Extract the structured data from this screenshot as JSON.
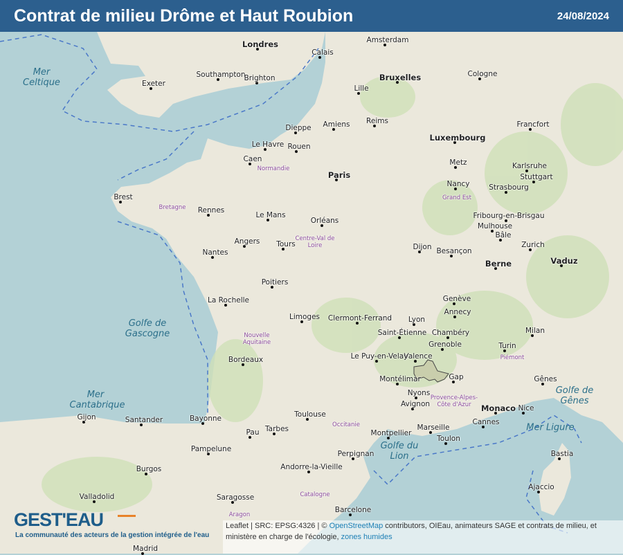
{
  "header": {
    "title": "Contrat de milieu Drôme et Haut Roubion",
    "date": "24/08/2024"
  },
  "map": {
    "highlight_area": "Drôme et Haut Roubion",
    "colors": {
      "sea": "#b3d1d6",
      "land": "#ebe8dc",
      "forest": "#cfe0b8",
      "highlight": "#c9ceac",
      "header": "#2c5f8e",
      "boundary": "#4a78c8"
    },
    "cities": [
      "Londres",
      "Paris",
      "Bruxelles",
      "Luxembourg",
      "Berne",
      "Monaco",
      "Vaduz",
      "Amsterdam",
      "Lille",
      "Rouen",
      "Le Havre",
      "Caen",
      "Rennes",
      "Brest",
      "Nantes",
      "Angers",
      "Le Mans",
      "Tours",
      "Orléans",
      "Poitiers",
      "La Rochelle",
      "Limoges",
      "Bordeaux",
      "Toulouse",
      "Montpellier",
      "Marseille",
      "Avignon",
      "Nice",
      "Lyon",
      "Grenoble",
      "Valence",
      "Montélimar",
      "Nyons",
      "Gap",
      "Chambéry",
      "Annecy",
      "Genève",
      "Dijon",
      "Besançon",
      "Nancy",
      "Metz",
      "Strasbourg",
      "Reims",
      "Amiens",
      "Clermont-Ferrand",
      "Saint-Étienne",
      "Le Puy-en-Velay",
      "Perpignan",
      "Andorre-la-Vieille",
      "Barcelone",
      "Saragosse",
      "Pampelune",
      "Santander",
      "Gijon",
      "Burgos",
      "Valladolid",
      "Madrid",
      "Turin",
      "Milan",
      "Gênes",
      "Zurich",
      "Bâle",
      "Mulhouse",
      "Fribourg-en-Brisgau",
      "Karlsruhe",
      "Stuttgart",
      "Francfort",
      "Cologne",
      "Bastia",
      "Ajaccio",
      "Southampton",
      "Brighton",
      "Exeter",
      "Calais",
      "Dieppe",
      "Cannes",
      "Toulon",
      "Pau",
      "Bayonne",
      "Tarbes"
    ],
    "seas": [
      "Golfe de Gascogne",
      "Mer Cantabrique",
      "Golfe du Lion",
      "Mer Celtique",
      "Mer Ligure",
      "Golfe de Gênes"
    ],
    "regions": [
      "Normandie",
      "Bretagne",
      "Centre-Val de Loire",
      "Nouvelle Aquitaine",
      "Occitanie",
      "Grand Est",
      "Provence-Alpes-Côte d'Azur",
      "Catalogne",
      "Aragon",
      "Piémont"
    ]
  },
  "logo": {
    "name": "GEST'EAU",
    "tagline": "La communauté des acteurs de la gestion intégrée de l'eau"
  },
  "attribution": {
    "prefix": "Leaflet | SRC: EPSG:4326 | © ",
    "osm": "OpenStreetMap",
    "text": " contributors, OIEau, animateurs SAGE et contrats de milieu, et ministère en charge de l'écologie, ",
    "link": "zones humides"
  }
}
